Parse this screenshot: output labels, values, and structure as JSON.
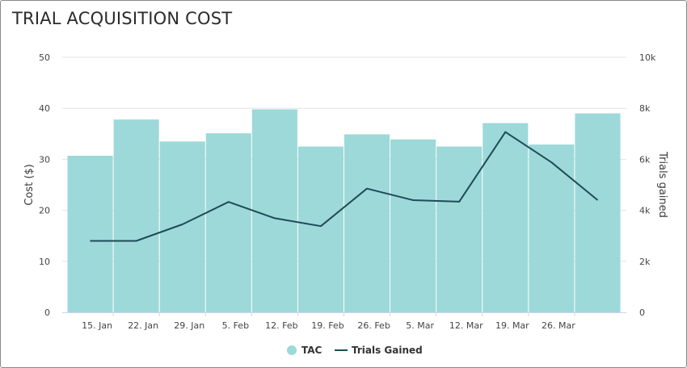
{
  "title": "TRIAL ACQUISITION COST",
  "colors": {
    "bar": "#9dd9d9",
    "line": "#1f4b56",
    "grid": "#e3e3e3"
  },
  "chart_data": {
    "type": "bar",
    "title": "TRIAL ACQUISITION COST",
    "xlabel": "",
    "categories": [
      "15. Jan",
      "22. Jan",
      "29. Jan",
      "5. Feb",
      "12. Feb",
      "19. Feb",
      "26. Feb",
      "5. Mar",
      "12. Mar",
      "19. Mar",
      "26. Mar",
      ""
    ],
    "x_tick_labels": [
      "15. Jan",
      "22. Jan",
      "29. Jan",
      "5. Feb",
      "12. Feb",
      "19. Feb",
      "26. Feb",
      "5. Mar",
      "12. Mar",
      "19. Mar",
      "26. Mar"
    ],
    "y_left": {
      "label": "Cost ($)",
      "ylim": [
        0,
        50
      ],
      "ticks": [
        "0",
        "10",
        "20",
        "30",
        "40",
        "50"
      ]
    },
    "y_right": {
      "label": "Trials gained",
      "ylim": [
        0,
        10000
      ],
      "ticks": [
        "0",
        "2k",
        "4k",
        "6k",
        "8k",
        "10k"
      ]
    },
    "grid": true,
    "legend": "bottom-center",
    "series": [
      {
        "name": "TAC",
        "type": "bar",
        "axis": "left",
        "values": [
          30.7,
          37.8,
          33.5,
          35.1,
          39.8,
          32.5,
          34.9,
          33.9,
          32.5,
          37.1,
          32.9,
          39.0
        ]
      },
      {
        "name": "Trials Gained",
        "type": "line",
        "axis": "right",
        "values": [
          2800,
          2800,
          3450,
          4330,
          3690,
          3380,
          4850,
          4400,
          4340,
          7070,
          5880,
          4400
        ]
      }
    ]
  }
}
